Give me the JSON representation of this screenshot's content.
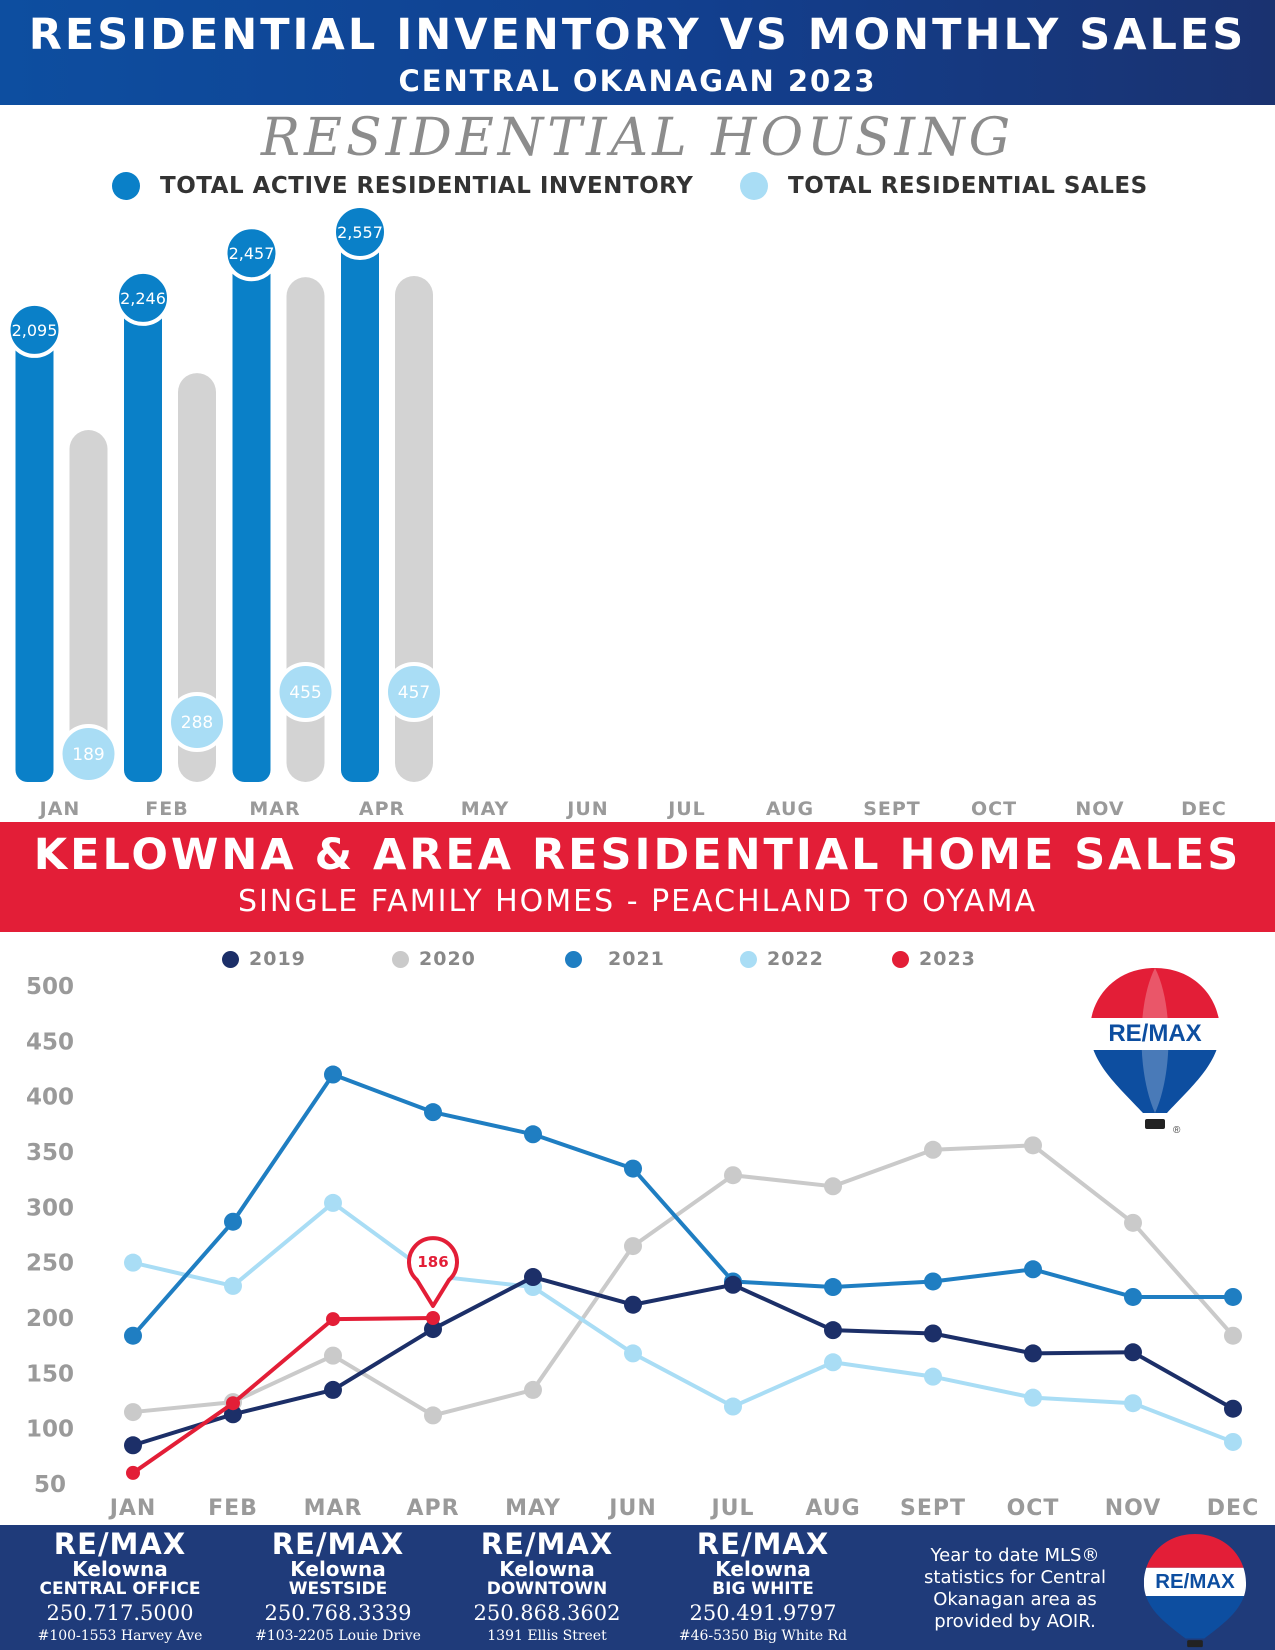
{
  "header": {
    "title": "RESIDENTIAL INVENTORY VS MONTHLY SALES",
    "subtitle": "CENTRAL OKANAGAN 2023",
    "section_title": "RESIDENTIAL HOUSING"
  },
  "legend1": {
    "inventory_label": "TOTAL ACTIVE RESIDENTIAL INVENTORY",
    "sales_label": "TOTAL RESIDENTIAL SALES"
  },
  "section2": {
    "title": "KELOWNA & AREA RESIDENTIAL HOME SALES",
    "subtitle": "SINGLE FAMILY HOMES - PEACHLAND TO OYAMA"
  },
  "colors": {
    "inventory": "#0a80c8",
    "sales_pill": "#d3d3d3",
    "sales_circle": "#a9ddf5",
    "y2019": "#1c2f68",
    "y2020": "#cacaca",
    "y2021": "#1f7ec2",
    "y2022": "#a9ddf5",
    "y2023": "#e31e37"
  },
  "chart_data": [
    {
      "type": "bar",
      "title": "RESIDENTIAL HOUSING",
      "categories": [
        "JAN",
        "FEB",
        "MAR",
        "APR",
        "MAY",
        "JUN",
        "JUL",
        "AUG",
        "SEPT",
        "OCT",
        "NOV",
        "DEC"
      ],
      "series": [
        {
          "name": "TOTAL ACTIVE RESIDENTIAL INVENTORY",
          "values": [
            2095,
            2246,
            2457,
            2557,
            null,
            null,
            null,
            null,
            null,
            null,
            null,
            null
          ],
          "labels": [
            "2,095",
            "2,246",
            "2,457",
            "2,557"
          ]
        },
        {
          "name": "TOTAL RESIDENTIAL SALES",
          "values": [
            189,
            288,
            455,
            457,
            null,
            null,
            null,
            null,
            null,
            null,
            null,
            null
          ],
          "labels": [
            "189",
            "288",
            "455",
            "457"
          ]
        }
      ]
    },
    {
      "type": "line",
      "title": "KELOWNA & AREA RESIDENTIAL HOME SALES",
      "categories": [
        "JAN",
        "FEB",
        "MAR",
        "APR",
        "MAY",
        "JUN",
        "JUL",
        "AUG",
        "SEPT",
        "OCT",
        "NOV",
        "DEC"
      ],
      "ylim": [
        50,
        500
      ],
      "yticks": [
        "500",
        "450",
        "400",
        "350",
        "300",
        "250",
        "200",
        "150",
        "100",
        "50"
      ],
      "series": [
        {
          "name": "2019",
          "values": [
            85,
            113,
            135,
            190,
            237,
            212,
            230,
            189,
            186,
            168,
            169,
            118
          ]
        },
        {
          "name": "2020",
          "values": [
            115,
            124,
            166,
            112,
            135,
            265,
            329,
            319,
            352,
            356,
            286,
            184
          ]
        },
        {
          "name": "2021",
          "values": [
            184,
            287,
            420,
            386,
            366,
            335,
            233,
            228,
            233,
            244,
            219,
            219
          ]
        },
        {
          "name": "2022",
          "values": [
            250,
            229,
            304,
            238,
            228,
            168,
            120,
            160,
            147,
            128,
            123,
            88
          ]
        },
        {
          "name": "2023",
          "values": [
            60,
            123,
            199,
            200,
            null,
            null,
            null,
            null,
            null,
            null,
            null,
            null
          ]
        }
      ],
      "annotation": "186"
    }
  ],
  "balloon_logo": "RE/MAX",
  "offices": [
    {
      "brand": "RE/MAX",
      "city": "Kelowna",
      "branch": "CENTRAL OFFICE",
      "phone": "250.717.5000",
      "address": "#100-1553 Harvey Ave"
    },
    {
      "brand": "RE/MAX",
      "city": "Kelowna",
      "branch": "WESTSIDE",
      "phone": "250.768.3339",
      "address": "#103-2205 Louie Drive"
    },
    {
      "brand": "RE/MAX",
      "city": "Kelowna",
      "branch": "DOWNTOWN",
      "phone": "250.868.3602",
      "address": "1391 Ellis Street"
    },
    {
      "brand": "RE/MAX",
      "city": "Kelowna",
      "branch": "BIG WHITE",
      "phone": "250.491.9797",
      "address": "#46-5350 Big White Rd"
    }
  ],
  "footer_note": "Year to date MLS® statistics for Central Okanagan area as provided by AOIR."
}
